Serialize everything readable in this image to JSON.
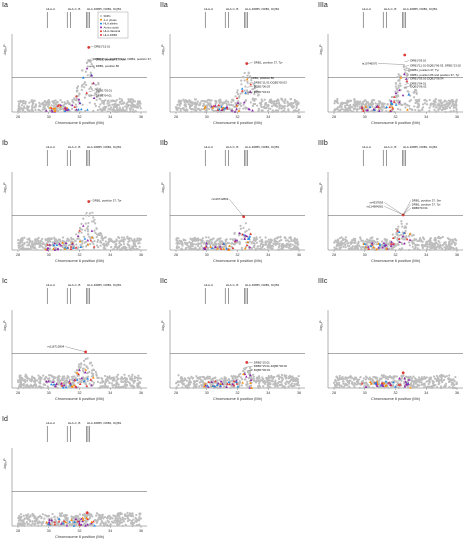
{
  "chart_data": [
    {
      "type": "scatter",
      "panel": "Ia",
      "ylabel": "-log₁₀P",
      "xlabel": "Chromosome 6 position (Mb)",
      "xlim": [
        28,
        36
      ],
      "ylim": [
        0,
        16
      ],
      "threshold": 7.3,
      "x_ticks": [
        "28",
        "30",
        "32",
        "34",
        "36"
      ],
      "hla_labels": [
        "HLA-A",
        "HLA-C, B",
        "HLA-DRB5, DRB1, DQB1"
      ],
      "legend": [
        "SNPs",
        "4-d. phase",
        "HLA alleles",
        "Amino acids",
        "HLA classical",
        "HLA-DRB1"
      ],
      "annotations": [
        {
          "text": "DRB1*15:01",
          "x": 32.5,
          "y": 13.6
        },
        {
          "text": "DRB1*15:01-DQB1*06:02, DRB1, position 37, Tyr, DQB1*06:02",
          "x": 32.4,
          "y": 11.0
        },
        {
          "text": "DRB1, position 37, Asn",
          "x": 32.6,
          "y": 10.8
        },
        {
          "text": "DRB1, position 86",
          "x": 32.6,
          "y": 9.5
        },
        {
          "text": "DQB1*03:01",
          "x": 32.6,
          "y": 4.3
        },
        {
          "text": "DRB1*04:01",
          "x": 32.6,
          "y": 3.3
        }
      ],
      "peaks": [
        {
          "x": 32.6,
          "y": 13.6
        }
      ]
    },
    {
      "type": "scatter",
      "panel": "IIa",
      "ylabel": "-log₁₀P",
      "xlabel": "Chromosome 6 position (Mb)",
      "xlim": [
        28,
        36
      ],
      "ylim": [
        0,
        16
      ],
      "threshold": 7.3,
      "x_ticks": [
        "28",
        "30",
        "32",
        "34",
        "36"
      ],
      "hla_labels": [
        "HLA-A",
        "HLA-C, B",
        "HLA-DRB5, DRB1, DQB1"
      ],
      "annotations": [
        {
          "text": "DRB1, position 37, Tyr",
          "x": 32.6,
          "y": 10.2
        },
        {
          "text": "DRB1, position 86",
          "x": 32.4,
          "y": 7.0
        },
        {
          "text": "DRB1*11:01-DQB1*06:03",
          "x": 32.6,
          "y": 6.0
        },
        {
          "text": "DQB1*06:03",
          "x": 32.6,
          "y": 5.2
        },
        {
          "text": "DQB1*03:01",
          "x": 32.6,
          "y": 4.0
        }
      ],
      "peaks": [
        {
          "x": 32.6,
          "y": 10.2
        }
      ]
    },
    {
      "type": "scatter",
      "panel": "IIIa",
      "ylabel": "-log₁₀P",
      "xlabel": "Chromosome 6 position (Mb)",
      "xlim": [
        28,
        36
      ],
      "ylim": [
        0,
        16
      ],
      "threshold": 7.3,
      "x_ticks": [
        "28",
        "30",
        "32",
        "34",
        "36"
      ],
      "hla_labels": [
        "HLA-A",
        "HLA-C, B",
        "HLA-DRB5, DRB1, DQB1"
      ],
      "annotations": [
        {
          "text": "DRB1*03:01",
          "x": 32.5,
          "y": 10.6
        },
        {
          "text": "rs10746570",
          "x": 31.0,
          "y": 10.0
        },
        {
          "text": "DRB1*11:01-DQB1*06:03, DRB1*13:02",
          "x": 32.5,
          "y": 9.6
        },
        {
          "text": "DRB1, position 37, Tyr",
          "x": 32.5,
          "y": 8.6
        },
        {
          "text": "DRB1, position 86 and position 37, Tyr",
          "x": 32.5,
          "y": 7.6
        },
        {
          "text": "DRB1*03:01-DQB1*06:04",
          "x": 32.5,
          "y": 6.8
        },
        {
          "text": "DRB1*04:01",
          "x": 32.5,
          "y": 5.8
        },
        {
          "text": "DQB1*06:02",
          "x": 32.5,
          "y": 5.2
        }
      ],
      "peaks": [
        {
          "x": 32.6,
          "y": 12.0
        }
      ]
    },
    {
      "type": "scatter",
      "panel": "Ib",
      "ylabel": "-log₁₀P",
      "xlabel": "Chromosome 6 position (Mb)",
      "xlim": [
        28,
        36
      ],
      "ylim": [
        0,
        16
      ],
      "threshold": 7.3,
      "x_ticks": [
        "28",
        "30",
        "32",
        "34",
        "36"
      ],
      "hla_labels": [
        "HLA-A",
        "HLA-C, B",
        "HLA-DRB5, DRB1, DQB1"
      ],
      "annotations": [
        {
          "text": "DRB1, position 37, Tyr",
          "x": 32.4,
          "y": 10.2
        }
      ],
      "peaks": [
        {
          "x": 32.6,
          "y": 10.2
        }
      ]
    },
    {
      "type": "scatter",
      "panel": "IIb",
      "ylabel": "-log₁₀P",
      "xlabel": "Chromosome 6 position (Mb)",
      "xlim": [
        28,
        36
      ],
      "ylim": [
        0,
        16
      ],
      "threshold": 7.3,
      "x_ticks": [
        "28",
        "30",
        "32",
        "34",
        "36"
      ],
      "hla_labels": [
        "HLA-A",
        "HLA-C, B",
        "HLA-DRB5, DRB1, DQB1"
      ],
      "annotations": [
        {
          "text": "rs116712804",
          "x": 31.6,
          "y": 10.5
        }
      ],
      "peaks": [
        {
          "x": 32.4,
          "y": 7.0
        }
      ]
    },
    {
      "type": "scatter",
      "panel": "IIIb",
      "ylabel": "-log₁₀P",
      "xlabel": "Chromosome 6 position (Mb)",
      "xlim": [
        28,
        36
      ],
      "ylim": [
        0,
        16
      ],
      "threshold": 7.3,
      "x_ticks": [
        "28",
        "30",
        "32",
        "34",
        "36"
      ],
      "hla_labels": [
        "HLA-A",
        "HLA-C, B",
        "HLA-DRB5, DRB1, DQB1"
      ],
      "annotations": [
        {
          "text": "DRB1, position 37, Ser",
          "x": 32.6,
          "y": 10.2
        },
        {
          "text": "rs4337693",
          "x": 31.4,
          "y": 9.8
        },
        {
          "text": "DRB1, position 37, Tyr",
          "x": 32.6,
          "y": 9.4
        },
        {
          "text": "rs114984281",
          "x": 31.4,
          "y": 9.0
        },
        {
          "text": "DRB1*03:01",
          "x": 32.6,
          "y": 8.6
        }
      ],
      "peaks": [
        {
          "x": 32.5,
          "y": 7.4
        }
      ]
    },
    {
      "type": "scatter",
      "panel": "Ic",
      "ylabel": "-log₁₀P",
      "xlabel": "Chromosome 6 position (Mb)",
      "xlim": [
        28,
        36
      ],
      "ylim": [
        0,
        16
      ],
      "threshold": 7.3,
      "x_ticks": [
        "28",
        "30",
        "32",
        "34",
        "36"
      ],
      "hla_labels": [
        "HLA-A",
        "HLA-C, B",
        "HLA-DRB5, DRB1, DQB1"
      ],
      "annotations": [
        {
          "text": "rs116712804",
          "x": 31.2,
          "y": 8.5
        }
      ],
      "peaks": [
        {
          "x": 32.4,
          "y": 7.6
        }
      ]
    },
    {
      "type": "scatter",
      "panel": "IIc",
      "ylabel": "-log₁₀P",
      "xlabel": "Chromosome 6 position (Mb)",
      "xlim": [
        28,
        36
      ],
      "ylim": [
        0,
        16
      ],
      "threshold": 7.3,
      "x_ticks": [
        "28",
        "30",
        "32",
        "34",
        "36"
      ],
      "hla_labels": [
        "HLA-A",
        "HLA-C, B",
        "HLA-DRB5, DRB1, DQB1"
      ],
      "annotations": [
        {
          "text": "DRB1*15:01",
          "x": 32.6,
          "y": 5.2
        },
        {
          "text": "DRB1*15:01-DQB1*06:02",
          "x": 32.6,
          "y": 4.4
        },
        {
          "text": "DQB1*06:03",
          "x": 32.6,
          "y": 3.6
        }
      ],
      "peaks": [
        {
          "x": 32.6,
          "y": 5.4
        }
      ]
    },
    {
      "type": "scatter",
      "panel": "IIIc",
      "ylabel": "-log₁₀P",
      "xlabel": "Chromosome 6 position (Mb)",
      "xlim": [
        28,
        36
      ],
      "ylim": [
        0,
        16
      ],
      "threshold": 7.3,
      "x_ticks": [
        "28",
        "30",
        "32",
        "34",
        "36"
      ],
      "hla_labels": [],
      "annotations": [],
      "peaks": [
        {
          "x": 32.5,
          "y": 3.2
        }
      ]
    },
    {
      "type": "scatter",
      "panel": "Id",
      "ylabel": "-log₁₀P",
      "xlabel": "Chromosome 6 position (Mb)",
      "xlim": [
        28,
        36
      ],
      "ylim": [
        0,
        16
      ],
      "threshold": 7.3,
      "x_ticks": [
        "28",
        "30",
        "32",
        "34",
        "36"
      ],
      "hla_labels": [
        "HLA-A",
        "HLA-C, B",
        "HLA-DRB5, DRB1, DQB1"
      ],
      "annotations": [],
      "peaks": [
        {
          "x": 32.5,
          "y": 2.8
        }
      ]
    }
  ],
  "colors": {
    "snp": "#bdbdbd",
    "aa": "#8e24aa",
    "hla": "#1e88e5",
    "drb1": "#e53935",
    "phase": "#fb8c00",
    "threshold": "#555555"
  }
}
